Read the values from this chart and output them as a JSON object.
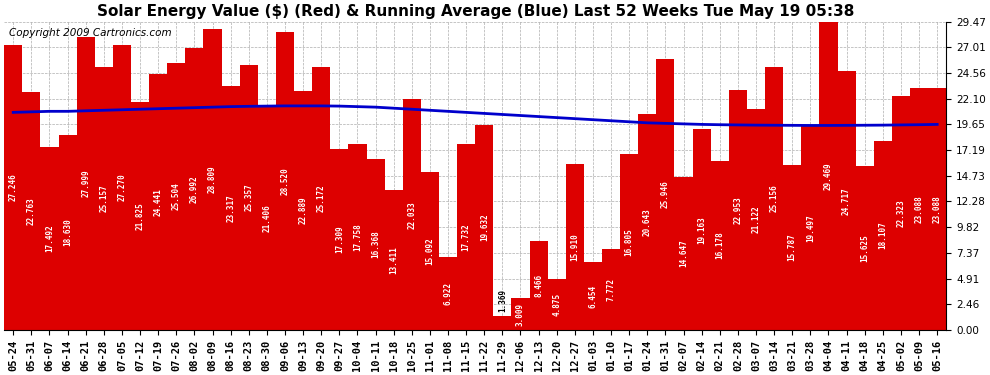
{
  "title": "Solar Energy Value ($) (Red) & Running Average (Blue) Last 52 Weeks Tue May 19 05:38",
  "copyright": "Copyright 2009 Cartronics.com",
  "ylim": [
    0,
    29.47
  ],
  "yticks": [
    0.0,
    2.46,
    4.91,
    7.37,
    9.82,
    12.28,
    14.73,
    17.19,
    19.65,
    22.1,
    24.56,
    27.01,
    29.47
  ],
  "bar_color": "#dd0000",
  "line_color": "#0000cc",
  "bg_color": "#ffffff",
  "grid_color": "#999999",
  "dates": [
    "05-24",
    "05-31",
    "06-07",
    "06-14",
    "06-21",
    "06-28",
    "07-05",
    "07-12",
    "07-19",
    "07-26",
    "08-02",
    "08-09",
    "08-16",
    "08-23",
    "08-30",
    "09-06",
    "09-13",
    "09-20",
    "09-27",
    "10-04",
    "10-11",
    "10-18",
    "10-25",
    "11-01",
    "11-08",
    "11-15",
    "11-22",
    "11-29",
    "12-06",
    "12-13",
    "12-20",
    "12-27",
    "01-03",
    "01-10",
    "01-17",
    "01-24",
    "01-31",
    "02-07",
    "02-14",
    "02-21",
    "02-28",
    "03-07",
    "03-14",
    "03-21",
    "03-28",
    "04-04",
    "04-11",
    "04-18",
    "04-25",
    "05-02",
    "05-09",
    "05-16"
  ],
  "values": [
    27.246,
    22.763,
    17.492,
    18.63,
    27.999,
    25.157,
    27.27,
    21.825,
    24.441,
    25.504,
    26.992,
    28.809,
    23.317,
    25.357,
    21.406,
    28.52,
    22.889,
    25.172,
    17.309,
    17.758,
    16.368,
    13.411,
    22.033,
    15.092,
    6.922,
    17.732,
    19.632,
    1.369,
    3.009,
    8.466,
    4.875,
    15.91,
    6.454,
    7.772,
    16.805,
    20.643,
    25.946,
    14.647,
    19.163,
    16.178,
    22.953,
    21.122,
    25.156,
    15.787,
    19.497,
    29.469,
    24.717,
    15.625,
    18.107,
    22.323,
    23.088,
    23.088
  ],
  "running_avg": [
    20.8,
    20.85,
    20.9,
    20.9,
    20.95,
    21.0,
    21.05,
    21.1,
    21.15,
    21.2,
    21.25,
    21.3,
    21.35,
    21.38,
    21.4,
    21.42,
    21.42,
    21.42,
    21.4,
    21.35,
    21.3,
    21.2,
    21.1,
    21.0,
    20.9,
    20.8,
    20.7,
    20.6,
    20.5,
    20.4,
    20.3,
    20.2,
    20.1,
    20.0,
    19.9,
    19.8,
    19.75,
    19.7,
    19.65,
    19.62,
    19.6,
    19.58,
    19.57,
    19.56,
    19.55,
    19.55,
    19.56,
    19.57,
    19.58,
    19.6,
    19.62,
    19.65
  ],
  "title_fontsize": 11,
  "tick_fontsize": 7.5,
  "label_fontsize": 5.5,
  "copyright_fontsize": 7.5
}
